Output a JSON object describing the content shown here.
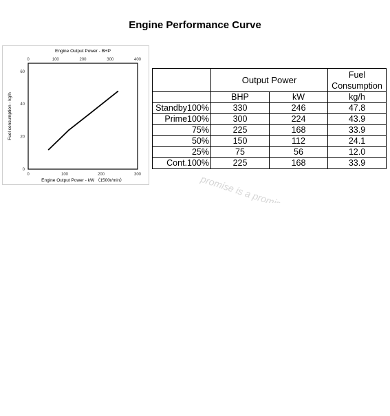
{
  "page_title": "Engine Performance Curve",
  "chart_data": {
    "type": "line",
    "x_top_label": "Engine Output Power - BHP",
    "x_bottom_label": "Engine Output Power - kW （1500r/min）",
    "ylabel": "Fuel consumption - kg/h",
    "x_bottom_ticks": [
      "0",
      "100",
      "200",
      "300"
    ],
    "x_top_ticks": [
      "0",
      "100",
      "200",
      "300",
      "400"
    ],
    "y_ticks": [
      "0",
      "20",
      "40",
      "60"
    ],
    "xlim": [
      0,
      300
    ],
    "x_top_lim": [
      0,
      400
    ],
    "ylim": [
      0,
      65
    ],
    "series": [
      {
        "x": [
          56,
          112,
          168,
          246
        ],
        "y": [
          12.0,
          24.1,
          33.9,
          47.8
        ]
      }
    ],
    "line_color": "#000000"
  },
  "table": {
    "header_output_power": "Output Power",
    "header_fuel": "Fuel Consumption",
    "col_bhp": "BHP",
    "col_kw": "kW",
    "col_fuel_unit": "kg/h",
    "rows": [
      {
        "label": "Standby100%",
        "bhp": "330",
        "kw": "246",
        "fuel": "47.8"
      },
      {
        "label": "Prime100%",
        "bhp": "300",
        "kw": "224",
        "fuel": "43.9"
      },
      {
        "label": "75%",
        "bhp": "225",
        "kw": "168",
        "fuel": "33.9"
      },
      {
        "label": "50%",
        "bhp": "150",
        "kw": "112",
        "fuel": "24.1"
      },
      {
        "label": "25%",
        "bhp": "75",
        "kw": "56",
        "fuel": "12.0"
      },
      {
        "label": "Cont.100%",
        "bhp": "225",
        "kw": "168",
        "fuel": "33.9"
      }
    ]
  },
  "watermark": {
    "text": "promise is a promise",
    "color": "#d6d6d6"
  }
}
